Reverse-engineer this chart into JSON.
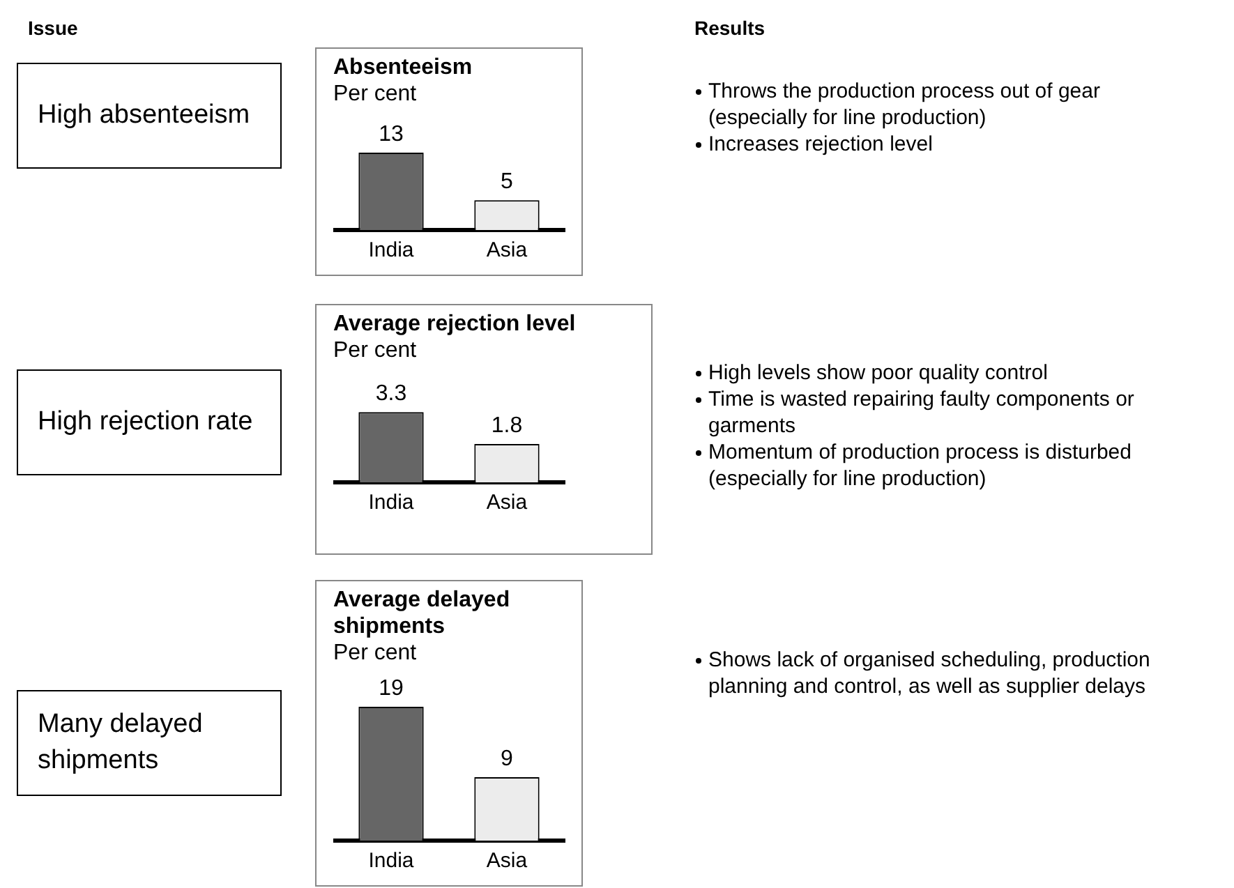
{
  "chart_data": [
    {
      "type": "other",
      "title": "Issue",
      "annotations": [
        "High absenteeism",
        "High rejection rate",
        "Many delayed shipments"
      ]
    },
    {
      "type": "bar",
      "title": "Absenteeism",
      "subtitle": "Per cent",
      "categories": [
        "India",
        "Asia"
      ],
      "values": [
        13,
        5
      ],
      "colors": [
        "#666666",
        "#ececec"
      ],
      "data_labels": true,
      "grid": false,
      "legend": false,
      "tick_labels": "x"
    },
    {
      "type": "bar",
      "title": "Average rejection level",
      "subtitle": "Per cent",
      "categories": [
        "India",
        "Asia"
      ],
      "values": [
        3.3,
        1.8
      ],
      "colors": [
        "#666666",
        "#ececec"
      ],
      "data_labels": true,
      "grid": false,
      "legend": false,
      "tick_labels": "x"
    },
    {
      "type": "bar",
      "title": "Average delayed shipments",
      "subtitle": "Per cent",
      "categories": [
        "India",
        "Asia"
      ],
      "values": [
        19,
        9
      ],
      "colors": [
        "#666666",
        "#ececec"
      ],
      "data_labels": true,
      "grid": false,
      "legend": false,
      "tick_labels": "x"
    },
    {
      "type": "other",
      "title": "Results",
      "annotations": [
        "Throws the production process out of gear (especially for line production)",
        "Increases rejection level"
      ]
    },
    {
      "type": "other",
      "annotations": [
        "High levels show poor quality control",
        "Time is wasted repairing faulty components or garments",
        "Momentum of production process is disturbed (especially for line production)"
      ]
    },
    {
      "type": "other",
      "annotations": [
        "Shows lack of organised scheduling, production planning and control, as well as supplier delays"
      ]
    }
  ]
}
